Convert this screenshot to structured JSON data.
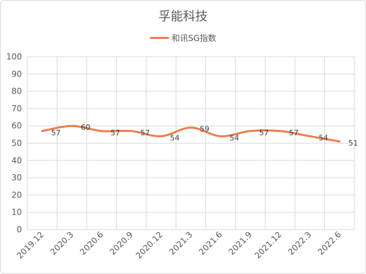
{
  "chart_data": {
    "type": "line",
    "title": "孚能科技",
    "categories": [
      "2019.12",
      "2020.3",
      "2020.6",
      "2020.9",
      "2020.12",
      "2021.3",
      "2021.6",
      "2021.9",
      "2021.12",
      "2022.3",
      "2022.6"
    ],
    "series": [
      {
        "name": "和讯SG指数",
        "values": [
          57,
          60,
          57,
          57,
          54,
          59,
          54,
          57,
          57,
          54,
          51
        ],
        "color": "#ed7d4f"
      }
    ],
    "xlabel": "",
    "ylabel": "",
    "ylim": [
      0,
      100
    ],
    "ytick_step": 10,
    "grid": true,
    "legend_position": "top",
    "smooth": true,
    "data_labels": true
  }
}
